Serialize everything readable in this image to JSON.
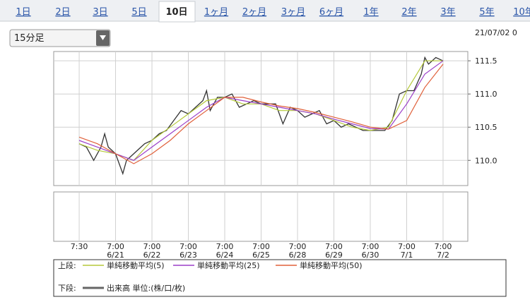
{
  "tabs": {
    "labels": [
      "1日",
      "2日",
      "3日",
      "5日",
      "10日",
      "1ヶ月",
      "2ヶ月",
      "3ヶ月",
      "6ヶ月",
      "1年",
      "2年",
      "3年",
      "5年",
      "10年"
    ],
    "active": 4
  },
  "interval_select": "15分足",
  "timestamp": "21/07/02 0",
  "chart_data": {
    "type": "line",
    "xlim": [
      -0.7,
      10.68
    ],
    "xticks": [
      {
        "value": 0,
        "label": "7:30"
      },
      {
        "value": 1,
        "label": "7:00"
      },
      {
        "value": 2,
        "label": "7:00"
      },
      {
        "value": 3,
        "label": "7:00"
      },
      {
        "value": 4,
        "label": "7:00"
      },
      {
        "value": 5,
        "label": "7:00"
      },
      {
        "value": 6,
        "label": "7:00"
      },
      {
        "value": 7,
        "label": "7:00"
      },
      {
        "value": 8,
        "label": "7:00"
      },
      {
        "value": 9,
        "label": "7:00"
      },
      {
        "value": 10,
        "label": "7:00"
      }
    ],
    "xtick_dates": [
      null,
      "6/21",
      "6/22",
      "6/23",
      "6/24",
      "6/25",
      "6/28",
      "6/29",
      "6/30",
      "7/1",
      "7/2"
    ],
    "ylim": [
      109.62,
      111.64
    ],
    "yticks": [
      {
        "value": 110,
        "label": "110.0"
      },
      110.5,
      {
        "value": 111,
        "label": "111.0"
      },
      111.5
    ],
    "grid": true,
    "series": [
      {
        "color": "#333333",
        "x": [
          0,
          0.2,
          0.4,
          0.6,
          0.7,
          0.8,
          1,
          1.2,
          1.3,
          1.4,
          1.6,
          1.8,
          2,
          2.2,
          2.4,
          2.6,
          2.8,
          3,
          3.2,
          3.4,
          3.5,
          3.6,
          3.8,
          4,
          4.2,
          4.4,
          4.6,
          4.8,
          5,
          5.2,
          5.4,
          5.6,
          5.8,
          6,
          6.2,
          6.4,
          6.6,
          6.8,
          7,
          7.2,
          7.4,
          7.6,
          7.8,
          8,
          8.2,
          8.4,
          8.6,
          8.8,
          9,
          9.2,
          9.4,
          9.5,
          9.6,
          9.8,
          10
        ],
        "values": [
          110.25,
          110.2,
          110.0,
          110.2,
          110.4,
          110.2,
          110.1,
          109.8,
          110.0,
          110.05,
          110.15,
          110.25,
          110.3,
          110.4,
          110.45,
          110.6,
          110.75,
          110.7,
          110.8,
          110.9,
          111.05,
          110.75,
          110.95,
          110.95,
          111.0,
          110.8,
          110.85,
          110.9,
          110.85,
          110.85,
          110.85,
          110.55,
          110.8,
          110.75,
          110.65,
          110.7,
          110.75,
          110.55,
          110.6,
          110.5,
          110.55,
          110.5,
          110.45,
          110.45,
          110.45,
          110.45,
          110.6,
          111.0,
          111.05,
          111.05,
          111.3,
          111.55,
          111.45,
          111.55,
          111.5
        ]
      },
      {
        "name": "単純移動平均(5)",
        "color": "#b5c93a",
        "x": [
          0,
          0.5,
          1,
          1.5,
          2,
          2.5,
          3,
          3.5,
          4,
          4.5,
          5,
          5.5,
          6,
          6.5,
          7,
          7.5,
          8,
          8.5,
          9,
          9.5,
          10
        ],
        "values": [
          110.25,
          110.15,
          110.1,
          110.0,
          110.3,
          110.5,
          110.7,
          110.9,
          110.95,
          110.85,
          110.85,
          110.75,
          110.75,
          110.7,
          110.6,
          110.5,
          110.45,
          110.5,
          111.05,
          111.5,
          111.5
        ]
      },
      {
        "name": "単純移動平均(25)",
        "color": "#9b3fc8",
        "x": [
          0,
          0.5,
          1,
          1.5,
          2,
          2.5,
          3,
          3.5,
          4,
          4.5,
          5,
          5.5,
          6,
          6.5,
          7,
          7.5,
          8,
          8.5,
          9,
          9.5,
          10
        ],
        "values": [
          110.3,
          110.2,
          110.1,
          110.0,
          110.2,
          110.4,
          110.6,
          110.8,
          110.95,
          110.9,
          110.85,
          110.8,
          110.75,
          110.7,
          110.62,
          110.55,
          110.48,
          110.47,
          110.85,
          111.3,
          111.5
        ]
      },
      {
        "name": "単純移動平均(50)",
        "color": "#e0603a",
        "x": [
          0,
          0.5,
          1,
          1.5,
          2,
          2.5,
          3,
          3.5,
          4,
          4.5,
          5,
          5.5,
          6,
          6.5,
          7,
          7.5,
          8,
          8.5,
          9,
          9.5,
          10
        ],
        "values": [
          110.35,
          110.25,
          110.1,
          109.95,
          110.1,
          110.3,
          110.55,
          110.75,
          110.95,
          110.95,
          110.88,
          110.82,
          110.78,
          110.72,
          110.65,
          110.58,
          110.5,
          110.47,
          110.6,
          111.1,
          111.45
        ]
      }
    ],
    "upper_label": "上段:",
    "lower_label": "下段:",
    "volume_legend": {
      "name": "出来高 単位:(株/口/枚)",
      "color": "#666666"
    }
  }
}
